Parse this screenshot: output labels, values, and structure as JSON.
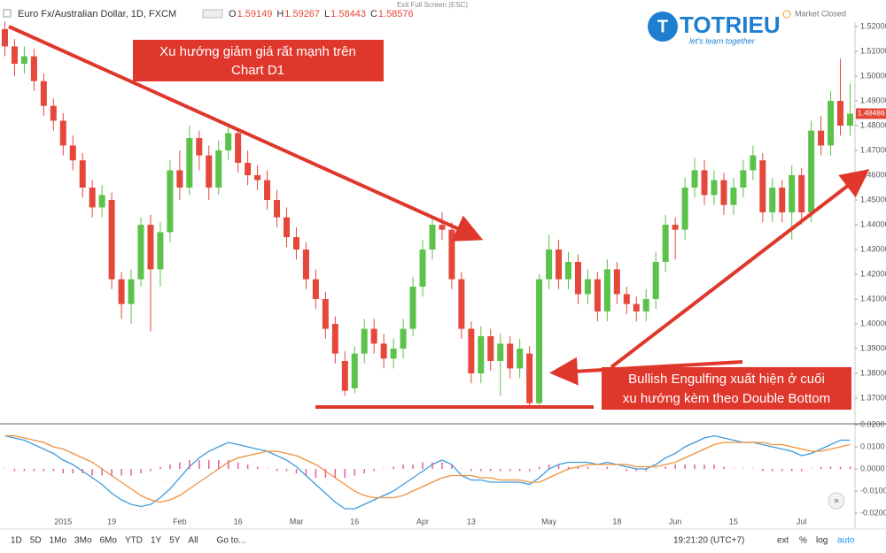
{
  "header": {
    "symbol": "Euro Fx/Australian Dollar, 1D, FXCM",
    "ohlc": [
      {
        "key": "O",
        "text": "1.59149"
      },
      {
        "key": "H",
        "text": "1.59267"
      },
      {
        "key": "L",
        "text": "1.58443"
      },
      {
        "key": "C",
        "text": "1.58576"
      }
    ],
    "exit": "Exit Full Screen (ESC)",
    "status": "Market Closed"
  },
  "logo": {
    "name": "TOTRIEU",
    "tagline": "let's learn together"
  },
  "annotations": [
    {
      "lines": [
        "Xu hướng giảm giá rất mạnh trên",
        "Chart D1"
      ]
    },
    {
      "lines": [
        "Bullish Engulfing xuất hiện ở cuối",
        "xu hướng kèm theo Double Bottom"
      ]
    }
  ],
  "toolbar": {
    "ranges": [
      "1D",
      "5D",
      "1Mo",
      "3Mo",
      "6Mo",
      "YTD",
      "1Y",
      "5Y",
      "All"
    ],
    "goto": "Go to...",
    "time": "19:21:20 (UTC+7)",
    "options": [
      "ext",
      "%",
      "log",
      "auto"
    ]
  },
  "chart_data": [
    {
      "type": "candlestick",
      "up_color": "#5bc24a",
      "down_color": "#e5473a",
      "categories": [
        null,
        null,
        null,
        null,
        null,
        null,
        "2015",
        null,
        null,
        null,
        null,
        "19",
        null,
        null,
        null,
        null,
        null,
        null,
        "Feb",
        null,
        null,
        null,
        null,
        null,
        "16",
        null,
        null,
        null,
        null,
        null,
        "Mar",
        null,
        null,
        null,
        null,
        null,
        "16",
        null,
        null,
        null,
        null,
        null,
        null,
        "Apr",
        null,
        null,
        null,
        null,
        "13",
        null,
        null,
        null,
        null,
        null,
        null,
        null,
        "May",
        null,
        null,
        null,
        null,
        null,
        null,
        "18",
        null,
        null,
        null,
        null,
        null,
        "Jun",
        null,
        null,
        null,
        null,
        null,
        "15",
        null,
        null,
        null,
        null,
        null,
        null,
        "Jul",
        null,
        null,
        null,
        null,
        null
      ],
      "open": [
        1.519,
        1.512,
        1.505,
        1.508,
        1.498,
        1.488,
        1.482,
        1.472,
        1.466,
        1.455,
        1.447,
        1.45,
        1.418,
        1.408,
        1.418,
        1.44,
        1.422,
        1.437,
        1.462,
        1.455,
        1.475,
        1.468,
        1.455,
        1.47,
        1.477,
        1.465,
        1.46,
        1.458,
        1.45,
        1.443,
        1.435,
        1.43,
        1.418,
        1.41,
        1.4,
        1.385,
        1.374,
        1.388,
        1.398,
        1.392,
        1.386,
        1.39,
        1.398,
        1.415,
        1.43,
        1.44,
        1.438,
        1.418,
        1.398,
        1.38,
        1.395,
        1.385,
        1.392,
        1.382,
        1.388,
        1.368,
        1.418,
        1.43,
        1.418,
        1.425,
        1.412,
        1.418,
        1.405,
        1.422,
        1.412,
        1.408,
        1.405,
        1.41,
        1.425,
        1.44,
        1.438,
        1.455,
        1.462,
        1.452,
        1.458,
        1.448,
        1.455,
        1.462,
        1.466,
        1.445,
        1.455,
        1.445,
        1.46,
        1.445,
        1.478,
        1.472,
        1.49,
        1.48
      ],
      "high": [
        1.522,
        1.515,
        1.512,
        1.511,
        1.501,
        1.491,
        1.485,
        1.476,
        1.469,
        1.458,
        1.456,
        1.453,
        1.421,
        1.422,
        1.443,
        1.444,
        1.441,
        1.466,
        1.47,
        1.48,
        1.478,
        1.472,
        1.474,
        1.48,
        1.479,
        1.47,
        1.464,
        1.462,
        1.454,
        1.447,
        1.439,
        1.433,
        1.422,
        1.413,
        1.403,
        1.389,
        1.391,
        1.402,
        1.402,
        1.396,
        1.394,
        1.402,
        1.419,
        1.434,
        1.443,
        1.445,
        1.441,
        1.421,
        1.401,
        1.399,
        1.398,
        1.396,
        1.395,
        1.394,
        1.391,
        1.42,
        1.436,
        1.434,
        1.429,
        1.428,
        1.422,
        1.421,
        1.426,
        1.425,
        1.415,
        1.411,
        1.414,
        1.429,
        1.444,
        1.443,
        1.459,
        1.467,
        1.466,
        1.462,
        1.461,
        1.459,
        1.466,
        1.472,
        1.469,
        1.459,
        1.458,
        1.464,
        1.463,
        1.482,
        1.484,
        1.494,
        1.507,
        1.497
      ],
      "low": [
        1.508,
        1.5,
        1.501,
        1.494,
        1.484,
        1.478,
        1.468,
        1.462,
        1.451,
        1.443,
        1.443,
        1.414,
        1.402,
        1.4,
        1.415,
        1.397,
        1.415,
        1.433,
        1.45,
        1.452,
        1.462,
        1.45,
        1.452,
        1.466,
        1.461,
        1.456,
        1.454,
        1.446,
        1.439,
        1.431,
        1.426,
        1.414,
        1.406,
        1.394,
        1.384,
        1.371,
        1.372,
        1.384,
        1.388,
        1.382,
        1.382,
        1.386,
        1.395,
        1.411,
        1.426,
        1.434,
        1.414,
        1.394,
        1.376,
        1.376,
        1.381,
        1.371,
        1.378,
        1.378,
        1.367,
        1.366,
        1.414,
        1.414,
        1.414,
        1.408,
        1.408,
        1.401,
        1.401,
        1.408,
        1.404,
        1.401,
        1.401,
        1.406,
        1.421,
        1.426,
        1.434,
        1.451,
        1.448,
        1.448,
        1.444,
        1.444,
        1.451,
        1.458,
        1.441,
        1.441,
        1.441,
        1.434,
        1.44,
        1.441,
        1.468,
        1.468,
        1.476,
        1.476
      ],
      "close": [
        1.512,
        1.505,
        1.508,
        1.498,
        1.488,
        1.482,
        1.472,
        1.466,
        1.455,
        1.447,
        1.452,
        1.418,
        1.408,
        1.418,
        1.44,
        1.422,
        1.437,
        1.462,
        1.455,
        1.475,
        1.468,
        1.455,
        1.47,
        1.477,
        1.465,
        1.46,
        1.458,
        1.45,
        1.443,
        1.435,
        1.43,
        1.418,
        1.41,
        1.398,
        1.388,
        1.373,
        1.388,
        1.398,
        1.392,
        1.386,
        1.39,
        1.398,
        1.415,
        1.43,
        1.44,
        1.438,
        1.418,
        1.398,
        1.38,
        1.395,
        1.385,
        1.392,
        1.382,
        1.39,
        1.368,
        1.418,
        1.43,
        1.418,
        1.425,
        1.412,
        1.418,
        1.405,
        1.422,
        1.412,
        1.408,
        1.405,
        1.41,
        1.425,
        1.44,
        1.438,
        1.455,
        1.462,
        1.452,
        1.458,
        1.448,
        1.455,
        1.462,
        1.468,
        1.445,
        1.455,
        1.445,
        1.46,
        1.445,
        1.478,
        1.472,
        1.49,
        1.48,
        1.48486
      ],
      "ylim": [
        1.36,
        1.5218
      ],
      "yticks": [
        {
          "value": 1.37,
          "label": "1.37000"
        },
        {
          "value": 1.38,
          "label": "1.38000"
        },
        {
          "value": 1.39,
          "label": "1.39000"
        },
        {
          "value": 1.4,
          "label": "1.40000"
        },
        {
          "value": 1.41,
          "label": "1.41000"
        },
        {
          "value": 1.42,
          "label": "1.42000"
        },
        {
          "value": 1.43,
          "label": "1.43000"
        },
        {
          "value": 1.44,
          "label": "1.44000"
        },
        {
          "value": 1.45,
          "label": "1.45000"
        },
        {
          "value": 1.46,
          "label": "1.46000"
        },
        {
          "value": 1.47,
          "label": "1.47000"
        },
        {
          "value": 1.48,
          "label": "1.48000"
        },
        {
          "value": 1.49,
          "label": "1.49000"
        },
        {
          "value": 1.5,
          "label": "1.50000"
        },
        {
          "value": 1.51,
          "label": "1.51000"
        },
        {
          "value": 1.52,
          "label": "1.52000"
        }
      ],
      "grid": false,
      "last_price_color": "#e5473a"
    },
    {
      "type": "macd",
      "series": [
        {
          "type": "line",
          "color": "#3d9be0",
          "values": [
            0.015,
            0.014,
            0.013,
            0.011,
            0.009,
            0.007,
            0.004,
            0.002,
            -0.001,
            -0.004,
            -0.007,
            -0.011,
            -0.014,
            -0.016,
            -0.017,
            -0.016,
            -0.013,
            -0.009,
            -0.004,
            0.001,
            0.005,
            0.008,
            0.01,
            0.012,
            0.011,
            0.01,
            0.009,
            0.008,
            0.006,
            0.004,
            0.001,
            -0.003,
            -0.007,
            -0.011,
            -0.015,
            -0.018,
            -0.018,
            -0.016,
            -0.014,
            -0.012,
            -0.01,
            -0.007,
            -0.004,
            -0.001,
            0.002,
            0.004,
            0.002,
            -0.003,
            -0.005,
            -0.005,
            -0.006,
            -0.006,
            -0.006,
            -0.006,
            -0.007,
            -0.004,
            0.0,
            0.002,
            0.003,
            0.003,
            0.003,
            0.002,
            0.003,
            0.002,
            0.001,
            0.0,
            0.0,
            0.002,
            0.005,
            0.007,
            0.01,
            0.012,
            0.014,
            0.015,
            0.014,
            0.013,
            0.012,
            0.012,
            0.011,
            0.01,
            0.009,
            0.008,
            0.006,
            0.007,
            0.009,
            0.011,
            0.013,
            0.013
          ]
        },
        {
          "type": "line",
          "color": "#f0913a",
          "values": [
            0.015,
            0.015,
            0.014,
            0.013,
            0.012,
            0.01,
            0.009,
            0.007,
            0.005,
            0.003,
            0.0,
            -0.003,
            -0.006,
            -0.009,
            -0.012,
            -0.014,
            -0.015,
            -0.014,
            -0.012,
            -0.009,
            -0.006,
            -0.003,
            0.0,
            0.003,
            0.005,
            0.006,
            0.007,
            0.008,
            0.008,
            0.007,
            0.006,
            0.004,
            0.002,
            -0.001,
            -0.004,
            -0.007,
            -0.01,
            -0.012,
            -0.013,
            -0.013,
            -0.013,
            -0.012,
            -0.01,
            -0.008,
            -0.006,
            -0.004,
            -0.003,
            -0.003,
            -0.003,
            -0.004,
            -0.004,
            -0.005,
            -0.005,
            -0.005,
            -0.006,
            -0.006,
            -0.004,
            -0.002,
            0.0,
            0.001,
            0.002,
            0.002,
            0.002,
            0.002,
            0.002,
            0.001,
            0.001,
            0.001,
            0.002,
            0.003,
            0.005,
            0.007,
            0.009,
            0.011,
            0.012,
            0.012,
            0.012,
            0.012,
            0.012,
            0.011,
            0.011,
            0.01,
            0.009,
            0.008,
            0.008,
            0.009,
            0.01,
            0.011
          ]
        },
        {
          "type": "bar",
          "color": "#e0609a",
          "values": [
            0.0,
            -0.001,
            -0.001,
            -0.001,
            -0.001,
            -0.001,
            -0.002,
            -0.002,
            -0.002,
            -0.003,
            -0.003,
            -0.003,
            -0.003,
            -0.003,
            -0.002,
            -0.001,
            0.001,
            0.002,
            0.003,
            0.004,
            0.004,
            0.004,
            0.004,
            0.004,
            0.003,
            0.002,
            0.001,
            0.0,
            -0.001,
            -0.001,
            -0.002,
            -0.003,
            -0.004,
            -0.004,
            -0.004,
            -0.004,
            -0.003,
            -0.002,
            -0.001,
            0.0,
            0.001,
            0.002,
            0.002,
            0.003,
            0.003,
            0.003,
            0.002,
            0.0,
            -0.001,
            -0.001,
            -0.001,
            -0.001,
            -0.001,
            -0.001,
            -0.001,
            0.001,
            0.002,
            0.002,
            0.001,
            0.001,
            0.001,
            0.0,
            0.001,
            0.0,
            -0.001,
            -0.001,
            -0.001,
            0.0,
            0.001,
            0.002,
            0.002,
            0.002,
            0.002,
            0.002,
            0.001,
            0.0,
            0.0,
            0.0,
            -0.001,
            -0.001,
            -0.001,
            -0.001,
            -0.001,
            0.0,
            0.001,
            0.001,
            0.001,
            0.001
          ]
        }
      ],
      "ylim": [
        -0.026,
        0.02
      ],
      "yticks": [
        {
          "value": 0.02,
          "label": "0.0200"
        },
        {
          "value": 0.01,
          "label": "0.0100"
        },
        {
          "value": 0,
          "label": "0.0000"
        },
        {
          "value": -0.01,
          "label": "-0.0100"
        },
        {
          "value": -0.02,
          "label": "-0.0200"
        }
      ],
      "grid": false
    }
  ]
}
